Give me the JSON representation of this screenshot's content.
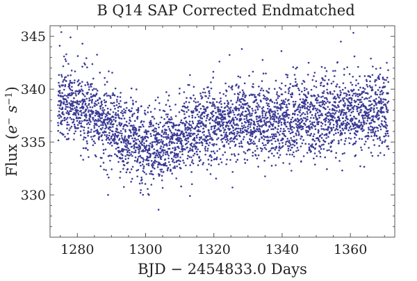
{
  "chart_data": {
    "type": "scatter",
    "title": "B Q14 SAP Corrected Endmatched",
    "xlabel": "BJD − 2454833.0 Days",
    "ylabel_main": "Flux (",
    "ylabel_e": "e",
    "ylabel_e_sup": "−",
    "ylabel_s": " s",
    "ylabel_s_sup": "−1",
    "ylabel_close": ")",
    "xlim": [
      1272,
      1373
    ],
    "ylim": [
      326.0,
      346.0
    ],
    "x_ticks": [
      1280,
      1300,
      1320,
      1340,
      1360
    ],
    "y_ticks": [
      330,
      335,
      340,
      345
    ],
    "x_tick_labels": [
      "1280",
      "1300",
      "1320",
      "1340",
      "1360"
    ],
    "y_tick_labels": [
      "330",
      "335",
      "340",
      "345"
    ],
    "point_color": "#3a3a95",
    "x_range_data": [
      1274.3,
      1371.2
    ],
    "trend": [
      {
        "x": 1274,
        "y": 338.8
      },
      {
        "x": 1280,
        "y": 338.4
      },
      {
        "x": 1286,
        "y": 337.2
      },
      {
        "x": 1292,
        "y": 335.8
      },
      {
        "x": 1297,
        "y": 335.0
      },
      {
        "x": 1301,
        "y": 334.4
      },
      {
        "x": 1306,
        "y": 335.0
      },
      {
        "x": 1312,
        "y": 335.9
      },
      {
        "x": 1320,
        "y": 336.6
      },
      {
        "x": 1330,
        "y": 337.0
      },
      {
        "x": 1340,
        "y": 337.1
      },
      {
        "x": 1350,
        "y": 337.4
      },
      {
        "x": 1360,
        "y": 337.6
      },
      {
        "x": 1372,
        "y": 337.9
      }
    ],
    "scatter_sigma": 1.8,
    "n_points": 3600,
    "notable_points": [
      {
        "x": 1275.3,
        "y": 345.4
      },
      {
        "x": 1278.0,
        "y": 344.9
      },
      {
        "x": 1281.5,
        "y": 344.3
      },
      {
        "x": 1289.0,
        "y": 330.0
      },
      {
        "x": 1298.5,
        "y": 330.2
      },
      {
        "x": 1303.8,
        "y": 328.6
      },
      {
        "x": 1313.0,
        "y": 329.9
      },
      {
        "x": 1328.2,
        "y": 343.8
      },
      {
        "x": 1339.8,
        "y": 343.6
      },
      {
        "x": 1357.2,
        "y": 344.5
      },
      {
        "x": 1361.2,
        "y": 343.1
      },
      {
        "x": 1366.0,
        "y": 342.9
      },
      {
        "x": 1368.8,
        "y": 342.0
      }
    ]
  }
}
